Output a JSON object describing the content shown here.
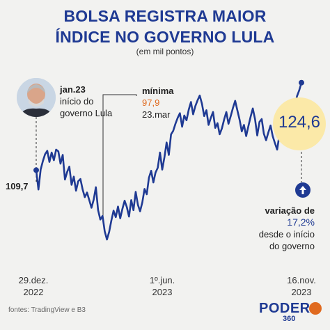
{
  "header": {
    "title_line1": "BOLSA REGISTRA MAIOR",
    "title_line2": "ÍNDICE NO GOVERNO LULA",
    "subtitle": "(em mil pontos)"
  },
  "annotations": {
    "start": {
      "title": "jan.23",
      "line1": "início do",
      "line2": "governo Lula"
    },
    "min": {
      "title": "mínima",
      "value": "97,9",
      "date": "23.mar"
    },
    "start_value": "109,7",
    "last_value": "124,6",
    "variation": {
      "title": "variação de",
      "value": "17,2%",
      "line1": "desde o início",
      "line2": "do governo"
    }
  },
  "x_axis": [
    {
      "line1": "29.dez.",
      "line2": "2022"
    },
    {
      "line1": "1º.jun.",
      "line2": "2023"
    },
    {
      "line1": "16.nov.",
      "line2": "2023"
    }
  ],
  "footer": {
    "source": "fontes: TradingView e B3",
    "logo_main": "PODER",
    "logo_sub": "360"
  },
  "colors": {
    "line": "#1f3a93",
    "accent": "#e06a1f",
    "highlight": "#fbe9a8"
  },
  "icons": {
    "avatar": "person-photo",
    "up": "arrow-up-icon"
  },
  "chart_data": {
    "type": "line",
    "title": "BOLSA REGISTRA MAIOR ÍNDICE NO GOVERNO LULA",
    "subtitle": "(em mil pontos)",
    "xlabel": "",
    "ylabel": "",
    "x_ticks": [
      "29.dez. 2022",
      "1º.jun. 2023",
      "16.nov. 2023"
    ],
    "ylim": [
      96,
      128
    ],
    "grid": false,
    "series": [
      {
        "values": [
          109.7,
          106.4,
          109.8,
          111.2,
          112.4,
          113.0,
          111.1,
          112.7,
          111.4,
          113.2,
          112.9,
          110.8,
          112.3,
          108.1,
          109.4,
          110.3,
          107.2,
          108.6,
          106.2,
          107.8,
          108.2,
          106.4,
          105.1,
          105.9,
          104.6,
          103.3,
          104.7,
          106.8,
          102.9,
          101.3,
          101.9,
          99.3,
          97.9,
          99.2,
          101.1,
          102.8,
          101.7,
          103.5,
          101.5,
          103.1,
          104.5,
          103.4,
          101.8,
          104.6,
          102.9,
          106.0,
          103.8,
          102.7,
          104.2,
          106.5,
          105.6,
          108.4,
          109.6,
          107.6,
          109.3,
          110.1,
          112.7,
          109.8,
          111.9,
          114.4,
          112.3,
          115.8,
          116.4,
          117.6,
          118.6,
          119.4,
          117.1,
          119.0,
          118.2,
          120.0,
          121.3,
          119.2,
          120.6,
          121.6,
          122.4,
          121.0,
          118.9,
          119.9,
          117.4,
          118.6,
          119.6,
          116.9,
          117.7,
          115.8,
          116.8,
          118.3,
          119.6,
          117.6,
          118.9,
          120.3,
          121.5,
          119.9,
          118.3,
          116.3,
          117.4,
          115.5,
          117.2,
          118.8,
          120.2,
          118.4,
          115.6,
          117.9,
          118.4,
          115.9,
          114.8,
          116.1,
          117.3,
          115.5,
          114.3,
          113.2,
          115.7,
          114.6,
          117.2,
          116.5,
          118.6,
          119.1,
          120.3,
          120.5,
          122.3,
          123.3,
          124.6
        ]
      }
    ]
  }
}
